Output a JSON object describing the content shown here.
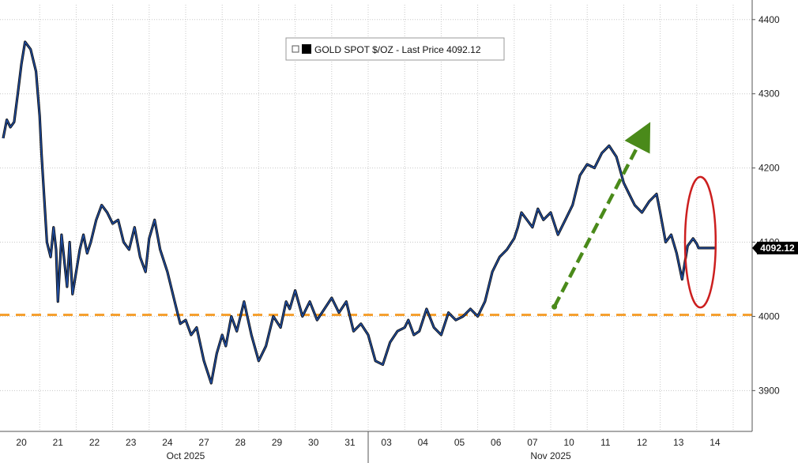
{
  "chart_data": {
    "type": "line",
    "title": "",
    "xlabel": "",
    "ylabel": "",
    "ylim": [
      3845,
      4420
    ],
    "y_ticks": [
      3900,
      4000,
      4100,
      4200,
      4300,
      4400
    ],
    "y_tick_labels": [
      "3900",
      "4000",
      "4100",
      "4200",
      "4300",
      "4400"
    ],
    "y_axis_side": "right",
    "grid": true,
    "legend": {
      "placement": "top-center",
      "label": "GOLD SPOT $/OZ - Last Price 4092.12",
      "marker_color": "#000000"
    },
    "last_price": {
      "value": 4092.12,
      "label": "4092.12"
    },
    "x_day_labels": [
      "20",
      "21",
      "22",
      "23",
      "24",
      "27",
      "28",
      "29",
      "30",
      "31",
      "03",
      "04",
      "05",
      "06",
      "07",
      "10",
      "11",
      "12",
      "13",
      "14"
    ],
    "x_month_labels": [
      "Oct 2025",
      "Nov 2025"
    ],
    "month_spans": [
      {
        "label": "Oct 2025",
        "first_day_index": 0,
        "last_day_index": 9
      },
      {
        "label": "Nov 2025",
        "first_day_index": 10,
        "last_day_index": 19
      }
    ],
    "series": [
      {
        "color": "#1f4fa8",
        "shadow_color": "#111111",
        "x": [
          0,
          0.1,
          0.2,
          0.3,
          0.4,
          0.5,
          0.6,
          0.75,
          0.9,
          1.0,
          1.05,
          1.1,
          1.2,
          1.3,
          1.38,
          1.45,
          1.5,
          1.6,
          1.75,
          1.82,
          1.9,
          2.0,
          2.1,
          2.2,
          2.3,
          2.4,
          2.55,
          2.7,
          2.85,
          3.0,
          3.15,
          3.3,
          3.45,
          3.6,
          3.75,
          3.9,
          4.0,
          4.15,
          4.3,
          4.5,
          4.7,
          4.85,
          5.0,
          5.15,
          5.3,
          5.5,
          5.7,
          5.85,
          6.0,
          6.1,
          6.25,
          6.4,
          6.6,
          6.8,
          7.0,
          7.2,
          7.4,
          7.6,
          7.75,
          7.85,
          8.0,
          8.2,
          8.4,
          8.6,
          8.8,
          9.0,
          9.2,
          9.4,
          9.6,
          9.8,
          10.0,
          10.2,
          10.4,
          10.6,
          10.8,
          11.0,
          11.1,
          11.25,
          11.4,
          11.6,
          11.8,
          12.0,
          12.2,
          12.4,
          12.6,
          12.8,
          13.0,
          13.2,
          13.4,
          13.6,
          13.8,
          14.0,
          14.1,
          14.2,
          14.35,
          14.5,
          14.65,
          14.8,
          15.0,
          15.2,
          15.4,
          15.6,
          15.8,
          16.0,
          16.2,
          16.4,
          16.6,
          16.8,
          17.0,
          17.15,
          17.3,
          17.5,
          17.7,
          17.9,
          18.0,
          18.15,
          18.3,
          18.45,
          18.6,
          18.75,
          18.9,
          19.0,
          19.05,
          19.1,
          19.2,
          19.3,
          19.4,
          19.5
        ],
        "values": [
          4240,
          4265,
          4255,
          4262,
          4300,
          4340,
          4370,
          4360,
          4330,
          4270,
          4220,
          4180,
          4100,
          4080,
          4120,
          4090,
          4020,
          4110,
          4040,
          4100,
          4030,
          4060,
          4090,
          4110,
          4085,
          4100,
          4130,
          4150,
          4140,
          4125,
          4130,
          4100,
          4090,
          4120,
          4080,
          4060,
          4105,
          4130,
          4090,
          4060,
          4020,
          3990,
          3995,
          3975,
          3985,
          3940,
          3910,
          3950,
          3975,
          3960,
          4000,
          3980,
          4020,
          3975,
          3940,
          3960,
          4000,
          3985,
          4020,
          4010,
          4035,
          4000,
          4020,
          3995,
          4010,
          4025,
          4005,
          4020,
          3980,
          3990,
          3975,
          3940,
          3935,
          3965,
          3980,
          3985,
          3995,
          3975,
          3980,
          4010,
          3985,
          3975,
          4005,
          3995,
          4000,
          4010,
          4000,
          4020,
          4060,
          4080,
          4090,
          4105,
          4120,
          4140,
          4130,
          4120,
          4145,
          4130,
          4140,
          4110,
          4130,
          4150,
          4190,
          4205,
          4200,
          4220,
          4230,
          4215,
          4180,
          4165,
          4150,
          4140,
          4155,
          4165,
          4140,
          4100,
          4110,
          4085,
          4050,
          4095,
          4105,
          4098,
          4092.12,
          4092.12,
          4092.12,
          4092.12,
          4092.12,
          4092.12
        ]
      }
    ],
    "reference_lines": [
      {
        "type": "horizontal",
        "value": 4002,
        "color": "#f5a030",
        "style": "dashed"
      }
    ],
    "annotations": [
      {
        "type": "arrow",
        "color": "#4a8a1a",
        "style": "dashed",
        "from": {
          "x": 15.1,
          "y": 4013
        },
        "to": {
          "x": 17.55,
          "y": 4245
        }
      },
      {
        "type": "ellipse",
        "color": "#cc1f1f",
        "center": {
          "x": 19.1,
          "y": 4100
        },
        "rx_days": 0.42,
        "ry_value": 88
      }
    ]
  }
}
